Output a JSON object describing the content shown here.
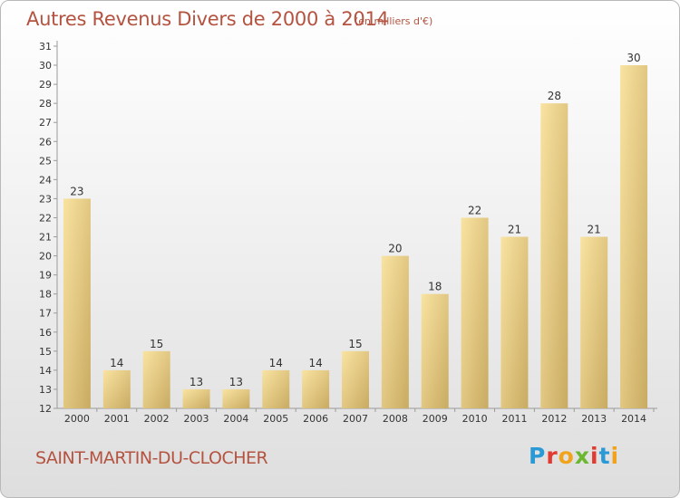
{
  "chart_data": {
    "type": "bar",
    "title": "Autres Revenus Divers de 2000 à 2014",
    "subtitle": "(en milliers d'€)",
    "categories": [
      "2000",
      "2001",
      "2002",
      "2003",
      "2004",
      "2005",
      "2006",
      "2007",
      "2008",
      "2009",
      "2010",
      "2011",
      "2012",
      "2013",
      "2014"
    ],
    "values": [
      23,
      14,
      15,
      13,
      13,
      14,
      14,
      15,
      20,
      18,
      22,
      21,
      28,
      21,
      30
    ],
    "ylim": [
      12,
      31
    ],
    "yticks": [
      12,
      13,
      14,
      15,
      16,
      17,
      18,
      19,
      20,
      21,
      22,
      23,
      24,
      25,
      26,
      27,
      28,
      29,
      30,
      31
    ],
    "grid": false,
    "bar_color": "#e8cd84"
  },
  "commune": "SAINT-MARTIN-DU-CLOCHER",
  "logo": {
    "letters": [
      "P",
      "r",
      "o",
      "x",
      "i",
      "t",
      "i"
    ],
    "colors": [
      "#2a9ad6",
      "#e23a2e",
      "#f2a31c",
      "#6ab82f",
      "#e23a2e",
      "#2a9ad6",
      "#f2a31c"
    ]
  }
}
